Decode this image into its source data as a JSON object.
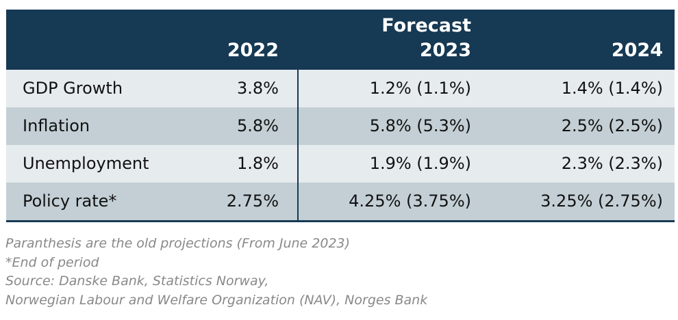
{
  "table": {
    "forecast_label": "Forecast",
    "headers": [
      "",
      "2022",
      "2023",
      "2024"
    ],
    "rows": [
      {
        "label": "GDP Growth",
        "v2022": "3.8%",
        "v2023": "1.2% (1.1%)",
        "v2024": "1.4% (1.4%)"
      },
      {
        "label": "Inflation",
        "v2022": "5.8%",
        "v2023": "5.8% (5.3%)",
        "v2024": "2.5% (2.5%)"
      },
      {
        "label": "Unemployment",
        "v2022": "1.8%",
        "v2023": "1.9% (1.9%)",
        "v2024": "2.3% (2.3%)"
      },
      {
        "label": "Policy rate*",
        "v2022": "2.75%",
        "v2023": "4.25% (3.75%)",
        "v2024": "3.25% (2.75%)"
      }
    ]
  },
  "notes": [
    "Paranthesis are the old projections (From June 2023)",
    "*End of period",
    "Source: Danske Bank, Statistics Norway,",
    "Norwegian Labour and Welfare Organization (NAV), Norges Bank"
  ],
  "colors": {
    "header": "#163954",
    "row_light": "#e6ebee",
    "row_dark": "#c3cfd5",
    "notes": "#888888"
  }
}
